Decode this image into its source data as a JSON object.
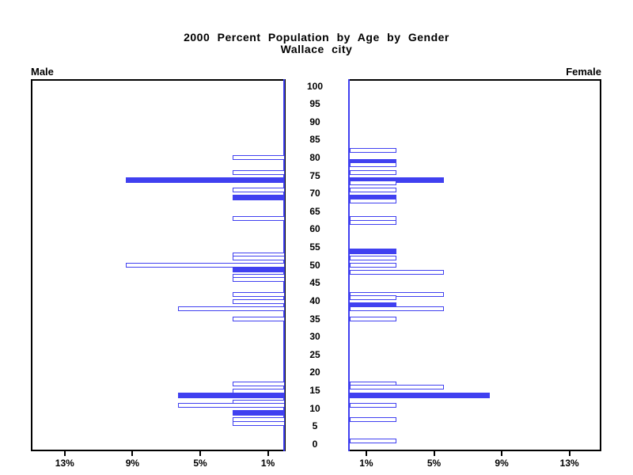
{
  "chart_data": {
    "type": "bar",
    "variant": "population-pyramid",
    "title": "2000 Percent Population by Age by Gender",
    "subtitle": "Wallace city",
    "age_axis": {
      "tick_values": [
        100,
        95,
        90,
        85,
        80,
        75,
        70,
        65,
        60,
        55,
        50,
        45,
        40,
        35,
        30,
        25,
        20,
        15,
        10,
        5,
        0
      ],
      "tick_labels": [
        "100",
        "95",
        "90",
        "85",
        "80",
        "75",
        "70",
        "65",
        "60",
        "55",
        "50",
        "45",
        "40",
        "35",
        "30",
        "25",
        "20",
        "15",
        "10",
        "5",
        "0"
      ]
    },
    "percent_axis": {
      "tick_values": [
        1,
        5,
        9,
        13
      ],
      "tick_labels": [
        "1%",
        "5%",
        "9%",
        "13%"
      ],
      "male_labels_left_to_right": [
        "13%",
        "9%",
        "5%",
        "1%"
      ],
      "female_labels_left_to_right": [
        "1%",
        "5%",
        "9%",
        "13%"
      ]
    },
    "bar_style_note": "solid filled bars at ages divisible by 5; hollow outlined bars at other ages",
    "series": [
      {
        "name": "Male",
        "side": "left",
        "bars": [
          {
            "age": 81,
            "percent": 3.1,
            "filled": false
          },
          {
            "age": 77,
            "percent": 3.1,
            "filled": false
          },
          {
            "age": 75,
            "percent": 9.4,
            "filled": true
          },
          {
            "age": 72,
            "percent": 3.1,
            "filled": false
          },
          {
            "age": 70,
            "percent": 3.1,
            "filled": true
          },
          {
            "age": 64,
            "percent": 3.1,
            "filled": false
          },
          {
            "age": 54,
            "percent": 3.1,
            "filled": false
          },
          {
            "age": 53,
            "percent": 3.1,
            "filled": false
          },
          {
            "age": 51,
            "percent": 9.4,
            "filled": false
          },
          {
            "age": 50,
            "percent": 3.1,
            "filled": true
          },
          {
            "age": 48,
            "percent": 3.1,
            "filled": false
          },
          {
            "age": 47,
            "percent": 3.1,
            "filled": false
          },
          {
            "age": 43,
            "percent": 3.1,
            "filled": false
          },
          {
            "age": 41,
            "percent": 3.1,
            "filled": false
          },
          {
            "age": 39,
            "percent": 6.3,
            "filled": false
          },
          {
            "age": 36,
            "percent": 3.1,
            "filled": false
          },
          {
            "age": 18,
            "percent": 3.1,
            "filled": false
          },
          {
            "age": 16,
            "percent": 3.1,
            "filled": false
          },
          {
            "age": 15,
            "percent": 6.3,
            "filled": true
          },
          {
            "age": 13,
            "percent": 3.1,
            "filled": false
          },
          {
            "age": 12,
            "percent": 6.3,
            "filled": false
          },
          {
            "age": 10,
            "percent": 3.1,
            "filled": true
          },
          {
            "age": 8,
            "percent": 3.1,
            "filled": false
          },
          {
            "age": 7,
            "percent": 3.1,
            "filled": false
          }
        ]
      },
      {
        "name": "Female",
        "side": "right",
        "bars": [
          {
            "age": 83,
            "percent": 2.8,
            "filled": false
          },
          {
            "age": 80,
            "percent": 2.8,
            "filled": true
          },
          {
            "age": 79,
            "percent": 2.8,
            "filled": false
          },
          {
            "age": 77,
            "percent": 2.8,
            "filled": false
          },
          {
            "age": 75,
            "percent": 5.6,
            "filled": true
          },
          {
            "age": 74,
            "percent": 2.8,
            "filled": false
          },
          {
            "age": 72,
            "percent": 2.8,
            "filled": false
          },
          {
            "age": 70,
            "percent": 2.8,
            "filled": true
          },
          {
            "age": 69,
            "percent": 2.8,
            "filled": false
          },
          {
            "age": 64,
            "percent": 2.8,
            "filled": false
          },
          {
            "age": 63,
            "percent": 2.8,
            "filled": false
          },
          {
            "age": 55,
            "percent": 2.8,
            "filled": true
          },
          {
            "age": 53,
            "percent": 2.8,
            "filled": false
          },
          {
            "age": 51,
            "percent": 2.8,
            "filled": false
          },
          {
            "age": 49,
            "percent": 5.6,
            "filled": false
          },
          {
            "age": 43,
            "percent": 5.6,
            "filled": false
          },
          {
            "age": 42,
            "percent": 2.8,
            "filled": false
          },
          {
            "age": 40,
            "percent": 2.8,
            "filled": true
          },
          {
            "age": 39,
            "percent": 5.6,
            "filled": false
          },
          {
            "age": 36,
            "percent": 2.8,
            "filled": false
          },
          {
            "age": 18,
            "percent": 2.8,
            "filled": false
          },
          {
            "age": 17,
            "percent": 5.6,
            "filled": false
          },
          {
            "age": 15,
            "percent": 8.3,
            "filled": true
          },
          {
            "age": 12,
            "percent": 2.8,
            "filled": false
          },
          {
            "age": 8,
            "percent": 2.8,
            "filled": false
          },
          {
            "age": 2,
            "percent": 2.8,
            "filled": false
          }
        ]
      }
    ],
    "colors": {
      "bar": "#4040f0",
      "hollow_fill": "#ffffff",
      "frame": "#000000",
      "text": "#000000",
      "background": "#ffffff"
    }
  }
}
